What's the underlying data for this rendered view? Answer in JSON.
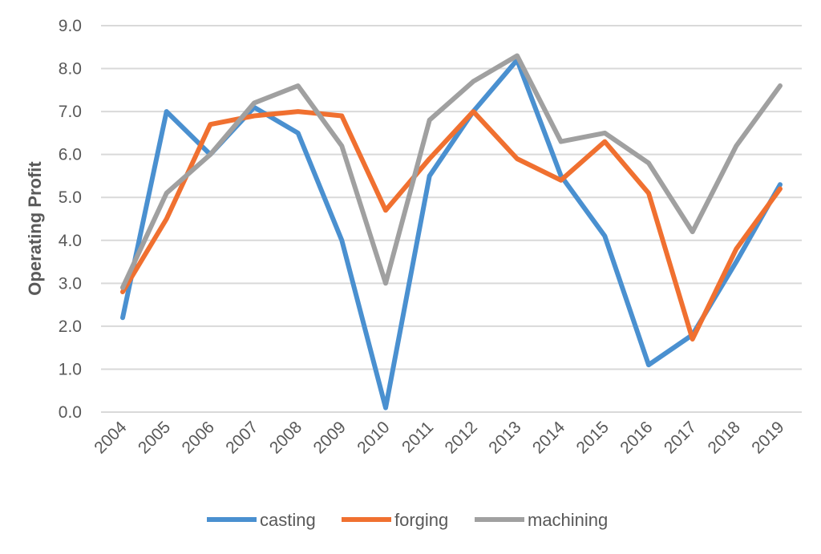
{
  "chart_data": {
    "type": "line",
    "title": "",
    "xlabel": "",
    "ylabel": "Operating Profit",
    "ylim": [
      0,
      9
    ],
    "yticks": [
      "0.0",
      "1.0",
      "2.0",
      "3.0",
      "4.0",
      "5.0",
      "6.0",
      "7.0",
      "8.0",
      "9.0"
    ],
    "grid": true,
    "legend_position": "bottom",
    "categories": [
      "2004",
      "2005",
      "2006",
      "2007",
      "2008",
      "2009",
      "2010",
      "2011",
      "2012",
      "2013",
      "2014",
      "2015",
      "2016",
      "2017",
      "2018",
      "2019"
    ],
    "series": [
      {
        "name": "casting",
        "color": "#4a90d0",
        "values": [
          2.2,
          7.0,
          6.0,
          7.1,
          6.5,
          4.0,
          0.1,
          5.5,
          7.0,
          8.2,
          5.5,
          4.1,
          1.1,
          1.8,
          3.5,
          5.3
        ]
      },
      {
        "name": "forging",
        "color": "#f07030",
        "values": [
          2.8,
          4.5,
          6.7,
          6.9,
          7.0,
          6.9,
          4.7,
          5.9,
          7.0,
          5.9,
          5.4,
          6.3,
          5.1,
          1.7,
          3.8,
          5.2
        ]
      },
      {
        "name": "machining",
        "color": "#a0a0a0",
        "values": [
          2.9,
          5.1,
          6.0,
          7.2,
          7.6,
          6.2,
          3.0,
          6.8,
          7.7,
          8.3,
          6.3,
          6.5,
          5.8,
          4.2,
          6.2,
          7.6
        ]
      }
    ]
  }
}
